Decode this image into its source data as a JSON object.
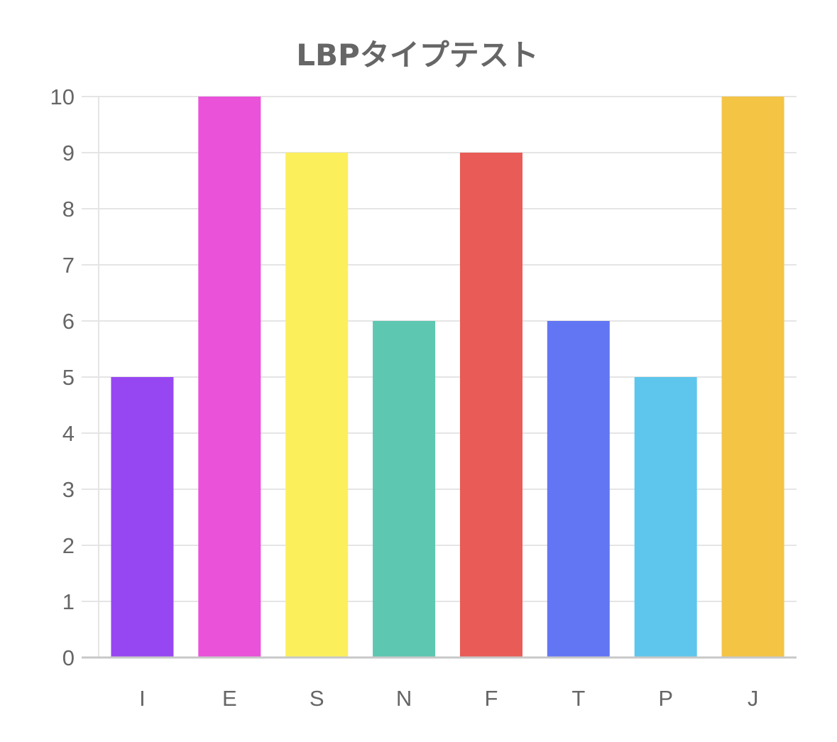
{
  "chart_data": {
    "type": "bar",
    "title": "LBPタイプテスト",
    "xlabel": "",
    "ylabel": "",
    "categories": [
      "I",
      "E",
      "S",
      "N",
      "F",
      "T",
      "P",
      "J"
    ],
    "values": [
      5,
      10,
      9,
      6,
      9,
      6,
      5,
      10
    ],
    "colors": [
      "#9747F2",
      "#E952D9",
      "#FCEF5C",
      "#5EC7B1",
      "#E85B56",
      "#6276F4",
      "#5EC6EC",
      "#F4C445"
    ],
    "ylim": [
      0,
      10
    ],
    "yticks": [
      "0",
      "1",
      "2",
      "3",
      "4",
      "5",
      "6",
      "7",
      "8",
      "9",
      "10"
    ],
    "grid": true,
    "legend": "none"
  }
}
